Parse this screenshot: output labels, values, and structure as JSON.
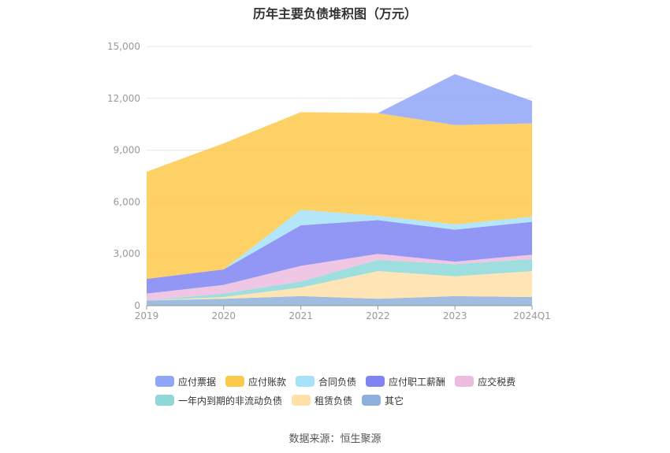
{
  "title": "历年主要负债堆积图（万元）",
  "source": "数据来源：恒生聚源",
  "chart_data": {
    "type": "area",
    "stacked": true,
    "title": "历年主要负债堆积图（万元）",
    "categories": [
      "2019",
      "2020",
      "2021",
      "2022",
      "2023",
      "2024Q1"
    ],
    "ylim": [
      0,
      15000
    ],
    "yticks": [
      0,
      3000,
      6000,
      9000,
      12000,
      15000
    ],
    "ytick_labels": [
      "0",
      "3,000",
      "6,000",
      "9,000",
      "12,000",
      "15,000"
    ],
    "grid": true,
    "legend_position": "bottom",
    "series": [
      {
        "name": "其它",
        "color": "#8fb0dc",
        "values": [
          300,
          400,
          550,
          400,
          550,
          500
        ]
      },
      {
        "name": "租赁负债",
        "color": "#ffe0a8",
        "values": [
          0,
          100,
          500,
          1600,
          1150,
          1500
        ]
      },
      {
        "name": "一年内到期的非流动负债",
        "color": "#8ed8d8",
        "values": [
          0,
          200,
          350,
          650,
          700,
          700
        ]
      },
      {
        "name": "应交税费",
        "color": "#ecbde0",
        "values": [
          400,
          500,
          900,
          350,
          150,
          250
        ]
      },
      {
        "name": "应付职工薪酬",
        "color": "#7f84f2",
        "values": [
          850,
          900,
          2350,
          1950,
          1850,
          1900
        ]
      },
      {
        "name": "合同负债",
        "color": "#a6e2f8",
        "values": [
          0,
          0,
          900,
          250,
          300,
          300
        ]
      },
      {
        "name": "应付账款",
        "color": "#fdc94a",
        "values": [
          6200,
          7300,
          5650,
          5950,
          5750,
          5400
        ]
      },
      {
        "name": "应付票据",
        "color": "#8fa6f8",
        "values": [
          0,
          0,
          0,
          0,
          2950,
          1300
        ]
      }
    ]
  },
  "legend": {
    "row1": [
      {
        "label": "应付票据",
        "color": "#8fa6f8"
      },
      {
        "label": "应付账款",
        "color": "#fdc94a"
      },
      {
        "label": "合同负债",
        "color": "#a6e2f8"
      },
      {
        "label": "应付职工薪酬",
        "color": "#7f84f2"
      },
      {
        "label": "应交税费",
        "color": "#ecbde0"
      }
    ],
    "row2": [
      {
        "label": "一年内到期的非流动负债",
        "color": "#8ed8d8"
      },
      {
        "label": "租赁负债",
        "color": "#ffe0a8"
      },
      {
        "label": "其它",
        "color": "#8fb0dc"
      }
    ]
  }
}
